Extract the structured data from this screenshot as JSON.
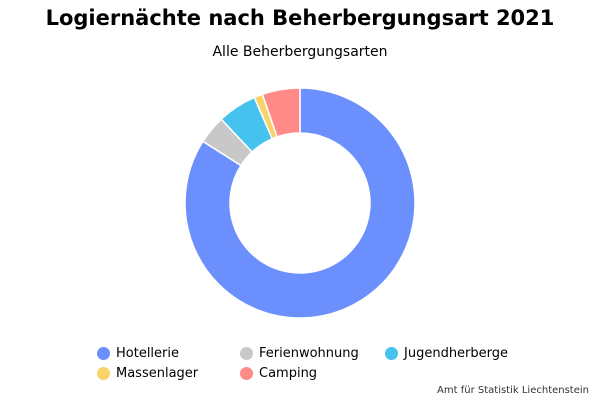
{
  "title": "Logiernächte nach Beherbergungsart 2021",
  "subtitle": "Alle Beherbergungsarten",
  "credit": "Amt für Statistik Liechtenstein",
  "chart_data": {
    "type": "pie",
    "variant": "donut",
    "legend_position": "bottom",
    "categories": [
      "Hotellerie",
      "Ferienwohnung",
      "Jugendherberge",
      "Massenlager",
      "Camping"
    ],
    "values": [
      84.0,
      4.0,
      5.5,
      1.2,
      5.3
    ],
    "colors": [
      "#6b8ffd",
      "#c8c8c8",
      "#45c2ee",
      "#f8d36a",
      "#ff8a87"
    ]
  }
}
